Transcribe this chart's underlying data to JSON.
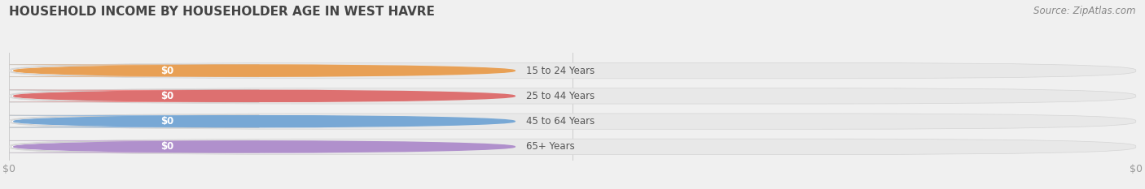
{
  "title": "HOUSEHOLD INCOME BY HOUSEHOLDER AGE IN WEST HAVRE",
  "source": "Source: ZipAtlas.com",
  "categories": [
    "15 to 24 Years",
    "25 to 44 Years",
    "45 to 64 Years",
    "65+ Years"
  ],
  "values": [
    0,
    0,
    0,
    0
  ],
  "bar_colors": [
    "#f0b882",
    "#f09090",
    "#90b8e0",
    "#c8a8d8"
  ],
  "pill_circle_colors": [
    "#e8a055",
    "#dd7070",
    "#78a8d5",
    "#b090cc"
  ],
  "background_color": "#f0f0f0",
  "bar_bg_color": "#e8e8e8",
  "bar_bg_edge_color": "#d5d5d5",
  "title_fontsize": 11,
  "source_fontsize": 8.5,
  "tick_color": "#999999",
  "value_label_color": "#ffffff",
  "label_text_color": "#555555",
  "grid_color": "#cccccc"
}
